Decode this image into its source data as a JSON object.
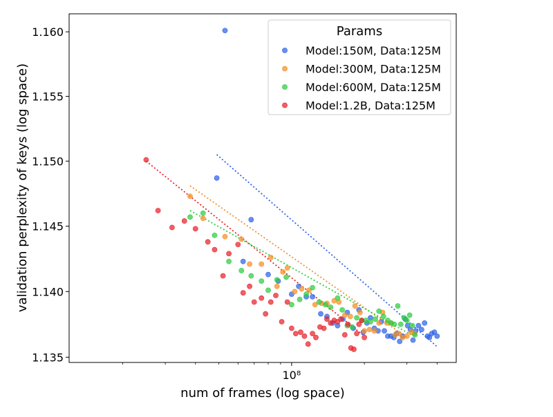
{
  "chart_data": {
    "type": "scatter",
    "xlabel": "num of frames (log space)",
    "ylabel": "validation perplexity of keys (log space)",
    "x_scale": "log",
    "y_scale": "log",
    "xlim": [
      12000000,
      480000000
    ],
    "ylim": [
      1.1346,
      1.1614
    ],
    "x_ticks": [
      {
        "value": 100000000,
        "label": "10⁸"
      }
    ],
    "y_ticks": [
      {
        "value": 1.135,
        "label": "1.135"
      },
      {
        "value": 1.14,
        "label": "1.140"
      },
      {
        "value": 1.145,
        "label": "1.145"
      },
      {
        "value": 1.15,
        "label": "1.150"
      },
      {
        "value": 1.155,
        "label": "1.155"
      },
      {
        "value": 1.16,
        "label": "1.160"
      }
    ],
    "legend": {
      "title": "Params",
      "position": "upper-right"
    },
    "series": [
      {
        "name": "Model:150M, Data:125M",
        "color": "#2e63e8",
        "fit": {
          "x_start": 49000000,
          "x_end": 400000000,
          "y_start": 1.1505,
          "y_end": 1.1358
        },
        "points": [
          [
            49000000,
            1.1487
          ],
          [
            53000000,
            1.1601
          ],
          [
            63000000,
            1.1423
          ],
          [
            68000000,
            1.1455
          ],
          [
            80000000,
            1.1413
          ],
          [
            88000000,
            1.1408
          ],
          [
            100000000,
            1.1398
          ],
          [
            107000000,
            1.1404
          ],
          [
            115000000,
            1.1396
          ],
          [
            122000000,
            1.1396
          ],
          [
            132000000,
            1.1383
          ],
          [
            140000000,
            1.1381
          ],
          [
            148000000,
            1.1376
          ],
          [
            155000000,
            1.1374
          ],
          [
            163000000,
            1.1379
          ],
          [
            170000000,
            1.1384
          ],
          [
            180000000,
            1.1372
          ],
          [
            190000000,
            1.1386
          ],
          [
            198000000,
            1.1369
          ],
          [
            205000000,
            1.1376
          ],
          [
            212000000,
            1.138
          ],
          [
            220000000,
            1.1372
          ],
          [
            228000000,
            1.137
          ],
          [
            235000000,
            1.1377
          ],
          [
            242000000,
            1.137
          ],
          [
            250000000,
            1.1366
          ],
          [
            258000000,
            1.1366
          ],
          [
            265000000,
            1.1365
          ],
          [
            272000000,
            1.1368
          ],
          [
            280000000,
            1.1362
          ],
          [
            288000000,
            1.1366
          ],
          [
            295000000,
            1.1379
          ],
          [
            302000000,
            1.1374
          ],
          [
            310000000,
            1.1371
          ],
          [
            318000000,
            1.1363
          ],
          [
            326000000,
            1.137
          ],
          [
            335000000,
            1.1374
          ],
          [
            345000000,
            1.1371
          ],
          [
            355000000,
            1.1376
          ],
          [
            365000000,
            1.1366
          ],
          [
            372000000,
            1.1365
          ],
          [
            380000000,
            1.1368
          ],
          [
            390000000,
            1.1369
          ],
          [
            400000000,
            1.1366
          ]
        ]
      },
      {
        "name": "Model:300M, Data:125M",
        "color": "#f58f22",
        "fit": {
          "x_start": 38000000,
          "x_end": 300000000,
          "y_start": 1.1481,
          "y_end": 1.1365
        },
        "points": [
          [
            38000000,
            1.1473
          ],
          [
            43000000,
            1.1456
          ],
          [
            53000000,
            1.1442
          ],
          [
            62000000,
            1.144
          ],
          [
            67000000,
            1.1421
          ],
          [
            75000000,
            1.1421
          ],
          [
            82000000,
            1.1426
          ],
          [
            87000000,
            1.1404
          ],
          [
            92000000,
            1.1415
          ],
          [
            96000000,
            1.1418
          ],
          [
            103000000,
            1.14
          ],
          [
            110000000,
            1.1402
          ],
          [
            118000000,
            1.1401
          ],
          [
            125000000,
            1.139
          ],
          [
            133000000,
            1.1391
          ],
          [
            140000000,
            1.1391
          ],
          [
            150000000,
            1.1393
          ],
          [
            157000000,
            1.1392
          ],
          [
            166000000,
            1.1382
          ],
          [
            175000000,
            1.1381
          ],
          [
            183000000,
            1.1389
          ],
          [
            192000000,
            1.1384
          ],
          [
            200000000,
            1.137
          ],
          [
            210000000,
            1.1371
          ],
          [
            220000000,
            1.137
          ],
          [
            230000000,
            1.1376
          ],
          [
            238000000,
            1.1384
          ],
          [
            248000000,
            1.1376
          ],
          [
            258000000,
            1.1376
          ],
          [
            268000000,
            1.1367
          ],
          [
            278000000,
            1.1368
          ],
          [
            288000000,
            1.1365
          ],
          [
            300000000,
            1.1366
          ],
          [
            312000000,
            1.1369
          ],
          [
            322000000,
            1.1368
          ]
        ]
      },
      {
        "name": "Model:600M, Data:125M",
        "color": "#2ecc40",
        "fit": {
          "x_start": 38000000,
          "x_end": 320000000,
          "y_start": 1.1462,
          "y_end": 1.1366
        },
        "points": [
          [
            38000000,
            1.1457
          ],
          [
            43000000,
            1.146
          ],
          [
            48000000,
            1.1443
          ],
          [
            55000000,
            1.1423
          ],
          [
            62000000,
            1.1416
          ],
          [
            68000000,
            1.1412
          ],
          [
            75000000,
            1.1408
          ],
          [
            80000000,
            1.1401
          ],
          [
            87000000,
            1.1409
          ],
          [
            95000000,
            1.1411
          ],
          [
            100000000,
            1.139
          ],
          [
            108000000,
            1.1394
          ],
          [
            115000000,
            1.1398
          ],
          [
            122000000,
            1.1403
          ],
          [
            130000000,
            1.1392
          ],
          [
            138000000,
            1.139
          ],
          [
            145000000,
            1.1388
          ],
          [
            155000000,
            1.1395
          ],
          [
            162000000,
            1.1386
          ],
          [
            170000000,
            1.1374
          ],
          [
            178000000,
            1.1373
          ],
          [
            186000000,
            1.138
          ],
          [
            195000000,
            1.1378
          ],
          [
            203000000,
            1.1378
          ],
          [
            212000000,
            1.1377
          ],
          [
            222000000,
            1.1379
          ],
          [
            230000000,
            1.1385
          ],
          [
            240000000,
            1.1381
          ],
          [
            250000000,
            1.1378
          ],
          [
            258000000,
            1.1376
          ],
          [
            266000000,
            1.1375
          ],
          [
            275000000,
            1.1389
          ],
          [
            283000000,
            1.1375
          ],
          [
            292000000,
            1.138
          ],
          [
            300000000,
            1.1378
          ],
          [
            308000000,
            1.1382
          ],
          [
            316000000,
            1.1374
          ],
          [
            324000000,
            1.1367
          ]
        ]
      },
      {
        "name": "Model:1.2B, Data:125M",
        "color": "#e8212b",
        "fit": {
          "x_start": 25000000,
          "x_end": 200000000,
          "y_start": 1.15,
          "y_end": 1.1366
        },
        "points": [
          [
            25000000,
            1.1501
          ],
          [
            28000000,
            1.1462
          ],
          [
            32000000,
            1.1449
          ],
          [
            36000000,
            1.1454
          ],
          [
            40000000,
            1.1448
          ],
          [
            45000000,
            1.1438
          ],
          [
            48000000,
            1.1432
          ],
          [
            52000000,
            1.1412
          ],
          [
            55000000,
            1.1429
          ],
          [
            60000000,
            1.1436
          ],
          [
            63000000,
            1.1399
          ],
          [
            67000000,
            1.1404
          ],
          [
            70000000,
            1.1392
          ],
          [
            75000000,
            1.1395
          ],
          [
            78000000,
            1.1383
          ],
          [
            82000000,
            1.1392
          ],
          [
            86000000,
            1.1397
          ],
          [
            91000000,
            1.1377
          ],
          [
            96000000,
            1.1392
          ],
          [
            100000000,
            1.1372
          ],
          [
            104000000,
            1.1368
          ],
          [
            109000000,
            1.1369
          ],
          [
            113000000,
            1.1366
          ],
          [
            117000000,
            1.136
          ],
          [
            122000000,
            1.1368
          ],
          [
            126000000,
            1.1365
          ],
          [
            131000000,
            1.1373
          ],
          [
            136000000,
            1.1372
          ],
          [
            140000000,
            1.1379
          ],
          [
            145000000,
            1.1376
          ],
          [
            150000000,
            1.1378
          ],
          [
            155000000,
            1.1377
          ],
          [
            160000000,
            1.1379
          ],
          [
            166000000,
            1.1367
          ],
          [
            171000000,
            1.1375
          ],
          [
            176000000,
            1.1357
          ],
          [
            181000000,
            1.1356
          ],
          [
            186000000,
            1.1368
          ],
          [
            190000000,
            1.1375
          ],
          [
            195000000,
            1.1378
          ],
          [
            200000000,
            1.1365
          ]
        ]
      }
    ]
  }
}
